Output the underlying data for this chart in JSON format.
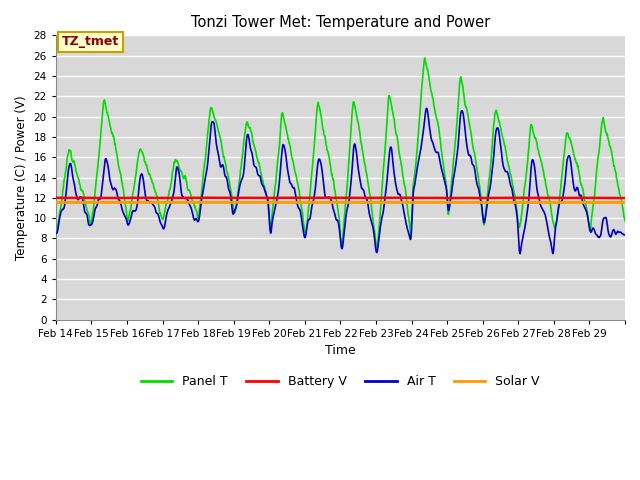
{
  "title": "Tonzi Tower Met: Temperature and Power",
  "xlabel": "Time",
  "ylabel": "Temperature (C) / Power (V)",
  "ylim": [
    0,
    28
  ],
  "yticks": [
    0,
    2,
    4,
    6,
    8,
    10,
    12,
    14,
    16,
    18,
    20,
    22,
    24,
    26,
    28
  ],
  "fig_bg_color": "#ffffff",
  "plot_bg_color": "#d8d8d8",
  "grid_color": "#ffffff",
  "annotation_text": "TZ_tmet",
  "annotation_color": "#8b0000",
  "annotation_bg": "#ffffcc",
  "annotation_border": "#c8a000",
  "series": {
    "panel_t": {
      "label": "Panel T",
      "color": "#00dd00",
      "linewidth": 1.2
    },
    "battery_v": {
      "label": "Battery V",
      "color": "#ff0000",
      "linewidth": 1.8
    },
    "air_t": {
      "label": "Air T",
      "color": "#0000cc",
      "linewidth": 1.2
    },
    "solar_v": {
      "label": "Solar V",
      "color": "#ff9900",
      "linewidth": 2.0
    }
  },
  "xtick_labels": [
    "Feb 14",
    "Feb 15",
    "Feb 16",
    "Feb 17",
    "Feb 18",
    "Feb 19",
    "Feb 20",
    "Feb 21",
    "Feb 22",
    "Feb 23",
    "Feb 24",
    "Feb 25",
    "Feb 26",
    "Feb 27",
    "Feb 28",
    "Feb 29"
  ],
  "battery_v_value": 12.0,
  "solar_v_value": 11.55
}
